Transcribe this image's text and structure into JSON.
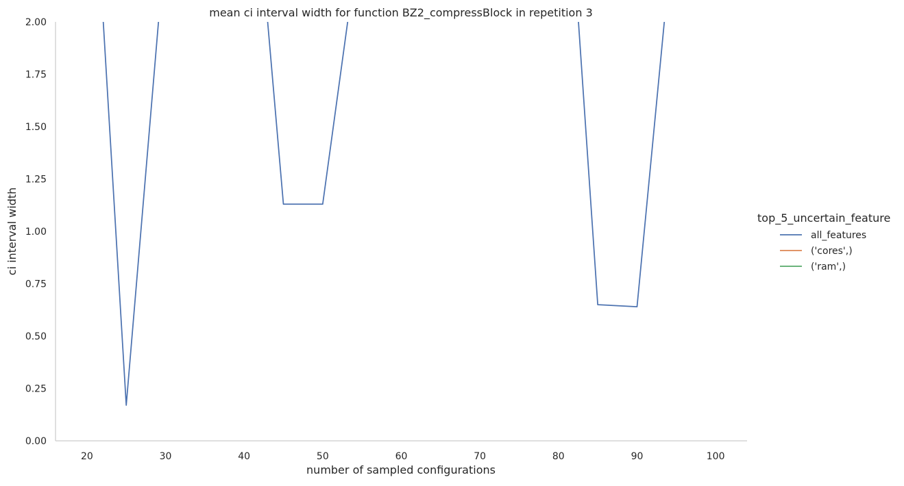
{
  "chart_data": {
    "type": "line",
    "title": "mean ci interval width for function BZ2_compressBlock in repetition 3",
    "xlabel": "number of sampled configurations",
    "ylabel": "ci interval width",
    "xlim": [
      16,
      104
    ],
    "ylim": [
      0,
      2
    ],
    "xticks": [
      20,
      30,
      40,
      50,
      60,
      70,
      80,
      90,
      100
    ],
    "xtick_labels": [
      "20",
      "30",
      "40",
      "50",
      "60",
      "70",
      "80",
      "90",
      "100"
    ],
    "yticks": [
      0,
      0.25,
      0.5,
      0.75,
      1.0,
      1.25,
      1.5,
      1.75,
      2.0
    ],
    "ytick_labels": [
      "0.00",
      "0.25",
      "0.50",
      "0.75",
      "1.00",
      "1.25",
      "1.50",
      "1.75",
      "2.00"
    ],
    "grid": false,
    "legend": {
      "title": "top_5_uncertain_feature",
      "placement": "right",
      "entries": [
        "all_features",
        "('cores',)",
        "('ram',)"
      ]
    },
    "series": [
      {
        "name": "all_features",
        "color": "#4c72b0",
        "x": [
          20,
          25,
          30,
          40,
          45,
          50,
          55,
          80,
          85,
          90,
          95
        ],
        "y": [
          3.3,
          0.17,
          2.4,
          3.3,
          1.13,
          1.13,
          2.5,
          3.4,
          0.65,
          0.64,
          2.6
        ]
      },
      {
        "name": "('cores',)",
        "color": "#dd8452",
        "x": [],
        "y": []
      },
      {
        "name": "('ram',)",
        "color": "#55a868",
        "x": [],
        "y": []
      }
    ]
  }
}
